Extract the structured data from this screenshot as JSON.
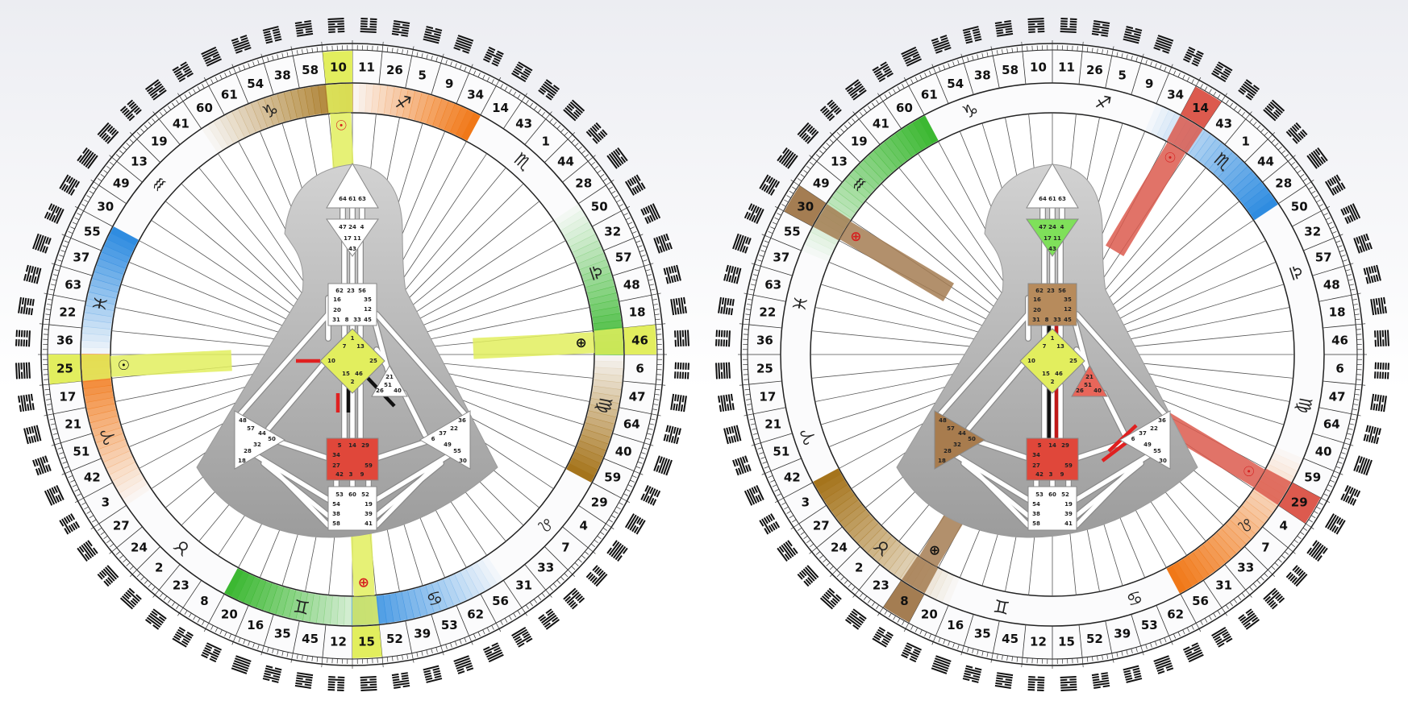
{
  "wheels": [
    {
      "gate_ring": [
        10,
        11,
        26,
        5,
        9,
        34,
        14,
        43,
        1,
        44,
        28,
        50,
        32,
        57,
        48,
        18,
        46,
        6,
        47,
        64,
        40,
        59,
        29,
        4,
        7,
        33,
        31,
        56,
        62,
        53,
        39,
        52,
        15,
        12,
        45,
        35,
        16,
        20,
        8,
        23,
        2,
        24,
        27,
        3,
        42,
        51,
        21,
        17,
        25,
        36,
        22,
        63,
        37,
        55,
        30,
        49,
        13,
        19,
        41,
        60,
        61,
        54,
        38,
        58
      ],
      "zodiac": [
        "♑",
        "♐",
        "♏",
        "♎",
        "♍",
        "♌",
        "♋",
        "♊",
        "♉",
        "♈",
        "♓",
        "♒"
      ],
      "highlights": [
        {
          "gate": 10,
          "color": "#e2ee5e"
        },
        {
          "gate": 46,
          "color": "#e2ee5e"
        },
        {
          "gate": 25,
          "color": "#e2ee5e"
        },
        {
          "gate": 15,
          "color": "#e2ee5e"
        }
      ],
      "planets": [
        {
          "symbol": "☉",
          "gate": 10,
          "color": "#d61f1f"
        },
        {
          "symbol": "⊕",
          "gate": 46,
          "color": "#111111"
        },
        {
          "symbol": "☉",
          "gate": 25,
          "color": "#111111"
        },
        {
          "symbol": "⊕",
          "gate": 15,
          "color": "#d61f1f"
        }
      ],
      "zodiac_arcs": [
        {
          "from": 60,
          "to": 10,
          "color": "#a5741c"
        },
        {
          "from": 11,
          "to": 34,
          "color": "#f07818"
        },
        {
          "from": 50,
          "to": 46,
          "color": "#3cb832"
        },
        {
          "from": 6,
          "to": 59,
          "color": "#a5741c"
        },
        {
          "from": 36,
          "to": 55,
          "color": "#2f8ce0"
        },
        {
          "from": 3,
          "to": 25,
          "color": "#f07818"
        },
        {
          "from": 15,
          "to": 20,
          "color": "#3cb832"
        },
        {
          "from": 56,
          "to": 15,
          "color": "#2f8ce0"
        }
      ],
      "bodygraph": {
        "head": {
          "gates": [
            64,
            61,
            63
          ],
          "color": "#ffffff"
        },
        "ajna": {
          "gates": [
            47,
            24,
            4,
            17,
            11,
            43
          ],
          "color": "#ffffff"
        },
        "throat": {
          "gates": [
            62,
            23,
            56,
            16,
            35,
            20,
            12,
            31,
            8,
            33,
            45
          ],
          "color": "#ffffff"
        },
        "g": {
          "gates": [
            1,
            13,
            7,
            10,
            25,
            15,
            46,
            2
          ],
          "color": "#e2ee5e"
        },
        "heart": {
          "gates": [
            21,
            51,
            26,
            40
          ],
          "color": "#ffffff"
        },
        "spleen": {
          "gates": [
            48,
            57,
            44,
            50,
            32,
            28,
            18
          ],
          "color": "#ffffff"
        },
        "sacral": {
          "gates": [
            5,
            14,
            29,
            34,
            27,
            59,
            42,
            3,
            9
          ],
          "color": "#e0473a"
        },
        "solar_plexus": {
          "gates": [
            36,
            22,
            37,
            6,
            49,
            55,
            30
          ],
          "color": "#ffffff"
        },
        "root": {
          "gates": [
            53,
            60,
            52,
            54,
            19,
            38,
            39,
            58,
            41
          ],
          "color": "#ffffff"
        }
      }
    },
    {
      "gate_ring": [
        10,
        11,
        26,
        5,
        9,
        34,
        14,
        43,
        1,
        44,
        28,
        50,
        32,
        57,
        48,
        18,
        46,
        6,
        47,
        64,
        40,
        59,
        29,
        4,
        7,
        33,
        31,
        56,
        62,
        53,
        39,
        52,
        15,
        12,
        45,
        35,
        16,
        20,
        8,
        23,
        2,
        24,
        27,
        3,
        42,
        51,
        21,
        17,
        25,
        36,
        22,
        63,
        37,
        55,
        30,
        49,
        13,
        19,
        41,
        60,
        61,
        54,
        38,
        58
      ],
      "zodiac": [
        "♑",
        "♐",
        "♏",
        "♎",
        "♍",
        "♌",
        "♋",
        "♊",
        "♉",
        "♈",
        "♓",
        "♒"
      ],
      "highlights": [
        {
          "gate": 14,
          "color": "#dc5a4e"
        },
        {
          "gate": 29,
          "color": "#dc5a4e"
        },
        {
          "gate": 30,
          "color": "#a47d52"
        },
        {
          "gate": 8,
          "color": "#a47d52"
        }
      ],
      "planets": [
        {
          "symbol": "☉",
          "gate": 14,
          "color": "#d61f1f"
        },
        {
          "symbol": "⊕",
          "gate": 30,
          "color": "#d61f1f"
        },
        {
          "symbol": "☉",
          "gate": 29,
          "color": "#d61f1f"
        },
        {
          "symbol": "⊕",
          "gate": 8,
          "color": "#111111"
        }
      ],
      "zodiac_arcs": [
        {
          "from": 55,
          "to": 60,
          "color": "#3cb832"
        },
        {
          "from": 34,
          "to": 28,
          "color": "#2f8ce0"
        },
        {
          "from": 59,
          "to": 56,
          "color": "#f07818"
        },
        {
          "from": 20,
          "to": 3,
          "color": "#a5741c"
        }
      ],
      "bodygraph": {
        "head": {
          "gates": [
            64,
            61,
            63
          ],
          "color": "#ffffff"
        },
        "ajna": {
          "gates": [
            47,
            24,
            4,
            17,
            11,
            43
          ],
          "color": "#7fe05a"
        },
        "throat": {
          "gates": [
            62,
            23,
            56,
            16,
            35,
            20,
            12,
            31,
            8,
            33,
            45
          ],
          "color": "#b78b5c"
        },
        "g": {
          "gates": [
            1,
            13,
            7,
            10,
            25,
            15,
            46,
            2
          ],
          "color": "#e2ee5e"
        },
        "heart": {
          "gates": [
            21,
            51,
            26,
            40
          ],
          "color": "#e8665a"
        },
        "spleen": {
          "gates": [
            48,
            57,
            44,
            50,
            32,
            28,
            18
          ],
          "color": "#a87c4e"
        },
        "sacral": {
          "gates": [
            5,
            14,
            29,
            34,
            27,
            59,
            42,
            3,
            9
          ],
          "color": "#e0473a"
        },
        "solar_plexus": {
          "gates": [
            36,
            22,
            37,
            6,
            49,
            55,
            30
          ],
          "color": "#ffffff"
        },
        "root": {
          "gates": [
            53,
            60,
            52,
            54,
            19,
            38,
            39,
            58,
            41
          ],
          "color": "#ffffff"
        }
      }
    }
  ]
}
